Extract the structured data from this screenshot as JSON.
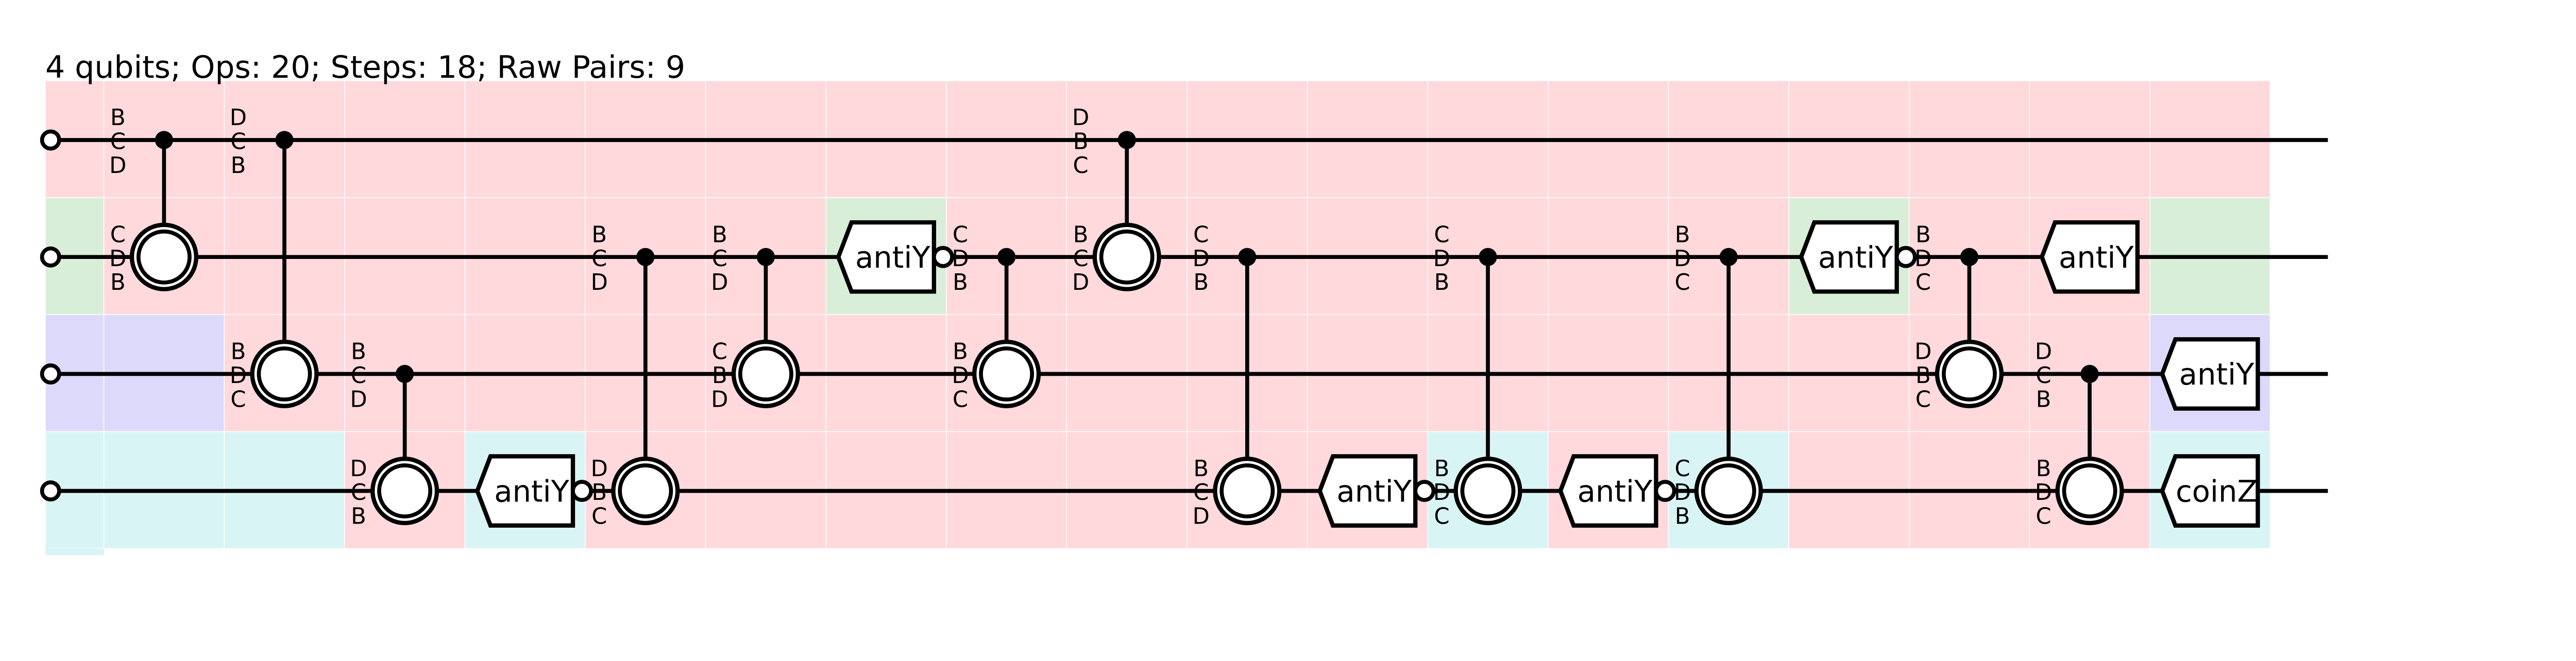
{
  "header": {
    "title": "4 qubits; Ops: 20; Steps: 18; Raw Pairs: 9"
  },
  "colors": {
    "pink": "#ffd9dc",
    "green": "#d9eed9",
    "lavender": "#dcd9fb",
    "cyan": "#d9f4f4",
    "wire": "#000000",
    "background": "#ffffff"
  },
  "qubit_count": 4,
  "step_count": 18,
  "background_cells": [
    [
      "pink",
      "pink",
      "pink",
      "pink",
      "pink",
      "pink",
      "pink",
      "pink",
      "pink",
      "pink",
      "pink",
      "pink",
      "pink",
      "pink",
      "pink",
      "pink",
      "pink",
      "pink",
      "pink"
    ],
    [
      "green",
      "pink",
      "pink",
      "pink",
      "pink",
      "pink",
      "pink",
      "green",
      "pink",
      "pink",
      "pink",
      "pink",
      "pink",
      "pink",
      "pink",
      "green",
      "pink",
      "pink",
      "green"
    ],
    [
      "lavender",
      "lavender",
      "pink",
      "pink",
      "pink",
      "pink",
      "pink",
      "pink",
      "pink",
      "pink",
      "pink",
      "pink",
      "pink",
      "pink",
      "pink",
      "pink",
      "pink",
      "pink",
      "lavender"
    ],
    [
      "cyan",
      "cyan",
      "cyan",
      "pink",
      "cyan",
      "pink",
      "pink",
      "pink",
      "pink",
      "pink",
      "pink",
      "pink",
      "cyan",
      "pink",
      "cyan",
      "pink",
      "pink",
      "pink",
      "cyan"
    ]
  ],
  "ops": [
    {
      "type": "ctrl",
      "step": 1,
      "control": 0,
      "target": 1,
      "labels": [
        [
          "B",
          "C",
          "D"
        ],
        [
          "C",
          "D",
          "B"
        ]
      ]
    },
    {
      "type": "ctrl",
      "step": 2,
      "control": 0,
      "target": 2,
      "labels": [
        [
          "D",
          "C",
          "B"
        ],
        [
          "B",
          "D",
          "C"
        ]
      ]
    },
    {
      "type": "ctrl",
      "step": 3,
      "control": 2,
      "target": 3,
      "labels": [
        [
          "B",
          "C",
          "D"
        ],
        [
          "D",
          "C",
          "B"
        ]
      ]
    },
    {
      "type": "gate",
      "step": 4,
      "qubit": 3,
      "name": "antiY",
      "anti": true
    },
    {
      "type": "ctrl",
      "step": 5,
      "control": 1,
      "target": 3,
      "labels": [
        [
          "B",
          "C",
          "D"
        ],
        [
          "D",
          "B",
          "C"
        ]
      ]
    },
    {
      "type": "ctrl",
      "step": 6,
      "control": 1,
      "target": 2,
      "labels": [
        [
          "B",
          "C",
          "D"
        ],
        [
          "C",
          "B",
          "D"
        ]
      ]
    },
    {
      "type": "gate",
      "step": 7,
      "qubit": 1,
      "name": "antiY",
      "anti": true
    },
    {
      "type": "ctrl",
      "step": 8,
      "control": 1,
      "target": 2,
      "labels": [
        [
          "C",
          "D",
          "B"
        ],
        [
          "B",
          "D",
          "C"
        ]
      ]
    },
    {
      "type": "ctrl",
      "step": 9,
      "control": 0,
      "target": 1,
      "labels": [
        [
          "D",
          "B",
          "C"
        ],
        [
          "B",
          "C",
          "D"
        ]
      ]
    },
    {
      "type": "ctrl",
      "step": 10,
      "control": 1,
      "target": 3,
      "labels": [
        [
          "C",
          "D",
          "B"
        ],
        [
          "B",
          "C",
          "D"
        ]
      ]
    },
    {
      "type": "gate",
      "step": 11,
      "qubit": 3,
      "name": "antiY",
      "anti": true
    },
    {
      "type": "ctrl",
      "step": 12,
      "control": 1,
      "target": 3,
      "labels": [
        [
          "C",
          "D",
          "B"
        ],
        [
          "B",
          "D",
          "C"
        ]
      ]
    },
    {
      "type": "gate",
      "step": 13,
      "qubit": 3,
      "name": "antiY",
      "anti": true
    },
    {
      "type": "ctrl",
      "step": 14,
      "control": 1,
      "target": 3,
      "labels": [
        [
          "B",
          "D",
          "C"
        ],
        [
          "C",
          "D",
          "B"
        ]
      ]
    },
    {
      "type": "gate",
      "step": 15,
      "qubit": 1,
      "name": "antiY",
      "anti": true
    },
    {
      "type": "ctrl",
      "step": 16,
      "control": 1,
      "target": 2,
      "labels": [
        [
          "B",
          "D",
          "C"
        ],
        [
          "D",
          "B",
          "C"
        ]
      ]
    },
    {
      "type": "gate",
      "step": 17,
      "qubit": 1,
      "name": "antiY",
      "anti": false
    },
    {
      "type": "ctrl",
      "step": 17,
      "control": 2,
      "target": 3,
      "labels": [
        [
          "D",
          "C",
          "B"
        ],
        [
          "B",
          "D",
          "C"
        ]
      ]
    },
    {
      "type": "gate",
      "step": 18,
      "qubit": 2,
      "name": "antiY",
      "anti": false
    },
    {
      "type": "gate",
      "step": 18,
      "qubit": 3,
      "name": "coinZ",
      "anti": false
    }
  ]
}
